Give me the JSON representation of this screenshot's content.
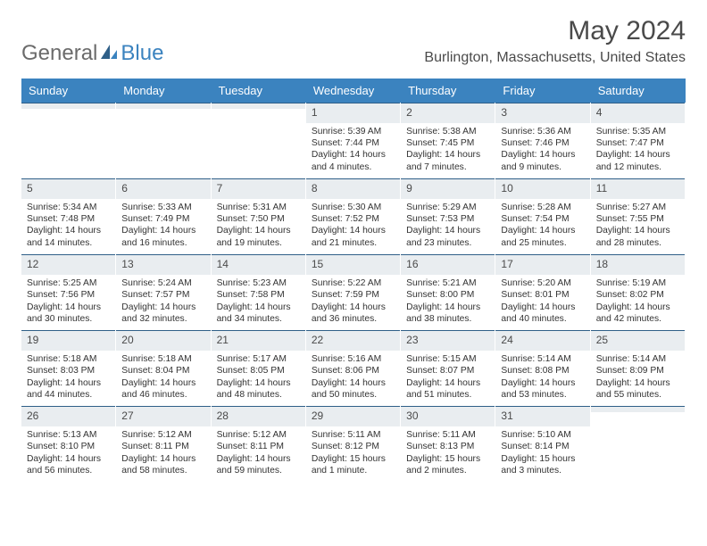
{
  "brand": {
    "part1": "General",
    "part2": "Blue"
  },
  "title": "May 2024",
  "location": "Burlington, Massachusetts, United States",
  "colors": {
    "header_bg": "#3b83bf",
    "daynum_bg": "#e9edf0",
    "divider": "#2f5f88",
    "text": "#333333",
    "brand_gray": "#6b6b6b"
  },
  "daysOfWeek": [
    "Sunday",
    "Monday",
    "Tuesday",
    "Wednesday",
    "Thursday",
    "Friday",
    "Saturday"
  ],
  "weeks": [
    [
      {
        "n": "",
        "sr": "",
        "ss": "",
        "dl": ""
      },
      {
        "n": "",
        "sr": "",
        "ss": "",
        "dl": ""
      },
      {
        "n": "",
        "sr": "",
        "ss": "",
        "dl": ""
      },
      {
        "n": "1",
        "sr": "Sunrise: 5:39 AM",
        "ss": "Sunset: 7:44 PM",
        "dl": "Daylight: 14 hours and 4 minutes."
      },
      {
        "n": "2",
        "sr": "Sunrise: 5:38 AM",
        "ss": "Sunset: 7:45 PM",
        "dl": "Daylight: 14 hours and 7 minutes."
      },
      {
        "n": "3",
        "sr": "Sunrise: 5:36 AM",
        "ss": "Sunset: 7:46 PM",
        "dl": "Daylight: 14 hours and 9 minutes."
      },
      {
        "n": "4",
        "sr": "Sunrise: 5:35 AM",
        "ss": "Sunset: 7:47 PM",
        "dl": "Daylight: 14 hours and 12 minutes."
      }
    ],
    [
      {
        "n": "5",
        "sr": "Sunrise: 5:34 AM",
        "ss": "Sunset: 7:48 PM",
        "dl": "Daylight: 14 hours and 14 minutes."
      },
      {
        "n": "6",
        "sr": "Sunrise: 5:33 AM",
        "ss": "Sunset: 7:49 PM",
        "dl": "Daylight: 14 hours and 16 minutes."
      },
      {
        "n": "7",
        "sr": "Sunrise: 5:31 AM",
        "ss": "Sunset: 7:50 PM",
        "dl": "Daylight: 14 hours and 19 minutes."
      },
      {
        "n": "8",
        "sr": "Sunrise: 5:30 AM",
        "ss": "Sunset: 7:52 PM",
        "dl": "Daylight: 14 hours and 21 minutes."
      },
      {
        "n": "9",
        "sr": "Sunrise: 5:29 AM",
        "ss": "Sunset: 7:53 PM",
        "dl": "Daylight: 14 hours and 23 minutes."
      },
      {
        "n": "10",
        "sr": "Sunrise: 5:28 AM",
        "ss": "Sunset: 7:54 PM",
        "dl": "Daylight: 14 hours and 25 minutes."
      },
      {
        "n": "11",
        "sr": "Sunrise: 5:27 AM",
        "ss": "Sunset: 7:55 PM",
        "dl": "Daylight: 14 hours and 28 minutes."
      }
    ],
    [
      {
        "n": "12",
        "sr": "Sunrise: 5:25 AM",
        "ss": "Sunset: 7:56 PM",
        "dl": "Daylight: 14 hours and 30 minutes."
      },
      {
        "n": "13",
        "sr": "Sunrise: 5:24 AM",
        "ss": "Sunset: 7:57 PM",
        "dl": "Daylight: 14 hours and 32 minutes."
      },
      {
        "n": "14",
        "sr": "Sunrise: 5:23 AM",
        "ss": "Sunset: 7:58 PM",
        "dl": "Daylight: 14 hours and 34 minutes."
      },
      {
        "n": "15",
        "sr": "Sunrise: 5:22 AM",
        "ss": "Sunset: 7:59 PM",
        "dl": "Daylight: 14 hours and 36 minutes."
      },
      {
        "n": "16",
        "sr": "Sunrise: 5:21 AM",
        "ss": "Sunset: 8:00 PM",
        "dl": "Daylight: 14 hours and 38 minutes."
      },
      {
        "n": "17",
        "sr": "Sunrise: 5:20 AM",
        "ss": "Sunset: 8:01 PM",
        "dl": "Daylight: 14 hours and 40 minutes."
      },
      {
        "n": "18",
        "sr": "Sunrise: 5:19 AM",
        "ss": "Sunset: 8:02 PM",
        "dl": "Daylight: 14 hours and 42 minutes."
      }
    ],
    [
      {
        "n": "19",
        "sr": "Sunrise: 5:18 AM",
        "ss": "Sunset: 8:03 PM",
        "dl": "Daylight: 14 hours and 44 minutes."
      },
      {
        "n": "20",
        "sr": "Sunrise: 5:18 AM",
        "ss": "Sunset: 8:04 PM",
        "dl": "Daylight: 14 hours and 46 minutes."
      },
      {
        "n": "21",
        "sr": "Sunrise: 5:17 AM",
        "ss": "Sunset: 8:05 PM",
        "dl": "Daylight: 14 hours and 48 minutes."
      },
      {
        "n": "22",
        "sr": "Sunrise: 5:16 AM",
        "ss": "Sunset: 8:06 PM",
        "dl": "Daylight: 14 hours and 50 minutes."
      },
      {
        "n": "23",
        "sr": "Sunrise: 5:15 AM",
        "ss": "Sunset: 8:07 PM",
        "dl": "Daylight: 14 hours and 51 minutes."
      },
      {
        "n": "24",
        "sr": "Sunrise: 5:14 AM",
        "ss": "Sunset: 8:08 PM",
        "dl": "Daylight: 14 hours and 53 minutes."
      },
      {
        "n": "25",
        "sr": "Sunrise: 5:14 AM",
        "ss": "Sunset: 8:09 PM",
        "dl": "Daylight: 14 hours and 55 minutes."
      }
    ],
    [
      {
        "n": "26",
        "sr": "Sunrise: 5:13 AM",
        "ss": "Sunset: 8:10 PM",
        "dl": "Daylight: 14 hours and 56 minutes."
      },
      {
        "n": "27",
        "sr": "Sunrise: 5:12 AM",
        "ss": "Sunset: 8:11 PM",
        "dl": "Daylight: 14 hours and 58 minutes."
      },
      {
        "n": "28",
        "sr": "Sunrise: 5:12 AM",
        "ss": "Sunset: 8:11 PM",
        "dl": "Daylight: 14 hours and 59 minutes."
      },
      {
        "n": "29",
        "sr": "Sunrise: 5:11 AM",
        "ss": "Sunset: 8:12 PM",
        "dl": "Daylight: 15 hours and 1 minute."
      },
      {
        "n": "30",
        "sr": "Sunrise: 5:11 AM",
        "ss": "Sunset: 8:13 PM",
        "dl": "Daylight: 15 hours and 2 minutes."
      },
      {
        "n": "31",
        "sr": "Sunrise: 5:10 AM",
        "ss": "Sunset: 8:14 PM",
        "dl": "Daylight: 15 hours and 3 minutes."
      },
      {
        "n": "",
        "sr": "",
        "ss": "",
        "dl": ""
      }
    ]
  ]
}
